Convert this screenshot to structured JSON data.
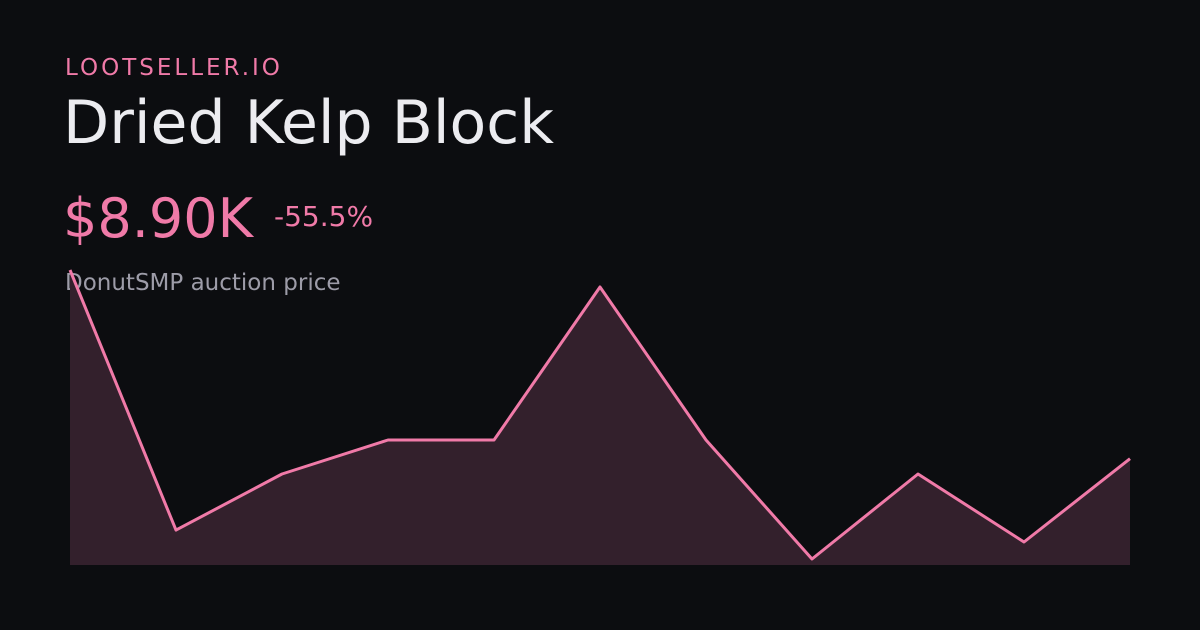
{
  "brand": "LOOTSELLER.IO",
  "title": "Dried Kelp Block",
  "price": "$8.90K",
  "change": "-55.5%",
  "subtitle": "DonutSMP auction price",
  "chart_data": {
    "type": "area",
    "color": "#f07aa8",
    "fill": "#33202c",
    "values": [
      20000,
      4700,
      8000,
      10000,
      10000,
      19000,
      10000,
      3000,
      8000,
      4000,
      8900
    ]
  }
}
